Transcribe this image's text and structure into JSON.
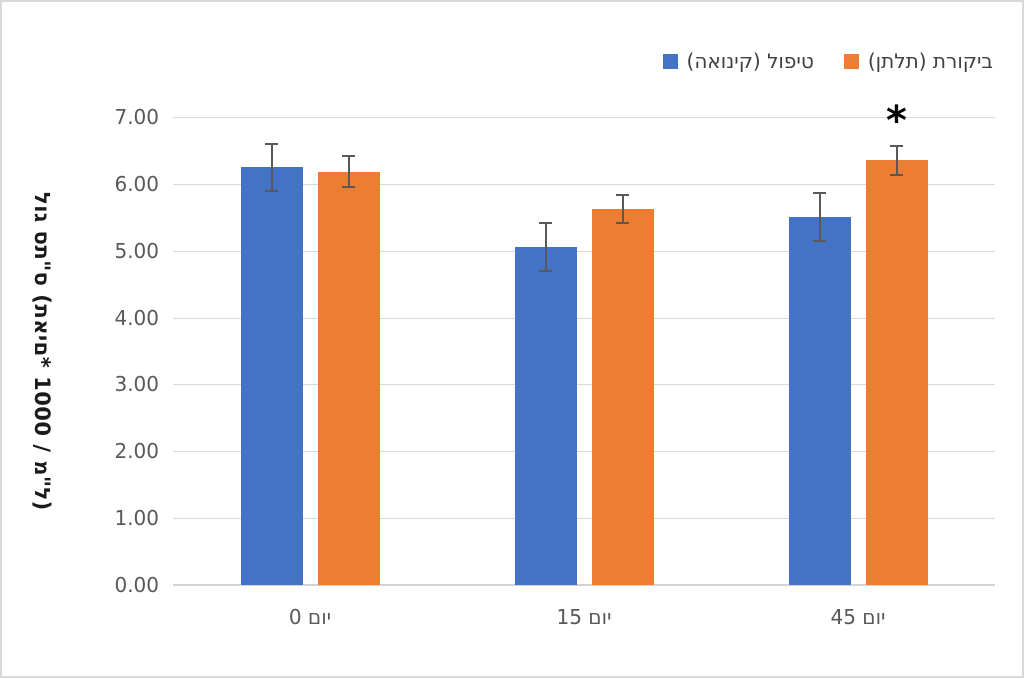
{
  "chart_data": {
    "type": "bar",
    "direction": "rtl",
    "title": "",
    "categories": [
      "יום 0",
      "יום 15",
      "יום 45"
    ],
    "series": [
      {
        "name": "טיפול (קינואה)",
        "color": "#4472C4",
        "values": [
          6.25,
          5.05,
          5.5
        ],
        "errors": [
          0.35,
          0.36,
          0.36
        ]
      },
      {
        "name": "ביקורת (תלתן)",
        "color": "#ED7D31",
        "values": [
          6.18,
          5.63,
          6.35
        ],
        "errors": [
          0.23,
          0.21,
          0.22
        ]
      }
    ],
    "xlabel": "",
    "ylabel": "לוג סת\"ס (תאים* 1000 / מ\"ל)",
    "ylim": [
      0,
      7
    ],
    "ytick_step": 1,
    "ytick_format": "2dp",
    "grid": true,
    "legend_position": "top-right",
    "annotations": [
      {
        "text": "*",
        "series_index": 1,
        "category_index": 2
      }
    ]
  },
  "colors": {
    "grid": "#D9D9D9",
    "axis_text": "#595959",
    "legend_text": "#404040",
    "error_bar": "#595959",
    "annotation": "#000000",
    "frame_border": "#D9D9D9"
  }
}
